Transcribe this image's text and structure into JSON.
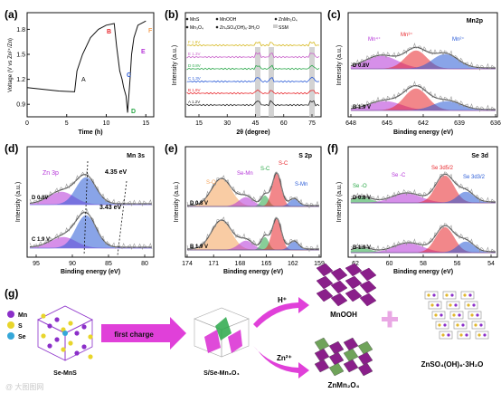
{
  "panels": {
    "a": {
      "label": "(a)",
      "ylabel": "Voltage (V vs Zn²⁺/Zn)",
      "xlabel": "Time (h)",
      "xticks": [
        "0",
        "5",
        "10",
        "15"
      ],
      "yticks": [
        "0.9",
        "1.2",
        "1.5",
        "1.8"
      ],
      "points": [
        "A",
        "B",
        "C",
        "D",
        "E",
        "F"
      ]
    },
    "b": {
      "label": "(b)",
      "ylabel": "Intensity (a.u.)",
      "xlabel": "2θ (degree)",
      "xticks": [
        "15",
        "30",
        "45",
        "60",
        "75"
      ],
      "legend": [
        "MnS",
        "Mn₃O₄",
        "MnOOH",
        "Zn₄SO₄(OH)₆·3H₂O",
        "ZnMn₂O₄",
        "SSM"
      ],
      "traces": [
        "F 1.9V",
        "E 1.3V",
        "D 0.8V",
        "C 1.3V",
        "B 1.9V",
        "A 1.2V"
      ]
    },
    "c": {
      "label": "(c)",
      "title": "Mn2p",
      "ylabel": "Intensity (a.u.)",
      "xlabel": "Binding energy (eV)",
      "xticks": [
        "648",
        "645",
        "642",
        "639",
        "636"
      ],
      "peaks": [
        "Mn⁴⁺",
        "Mn³⁺",
        "Mn²⁺"
      ],
      "traces": [
        "D 0.8V",
        "B 1.9 V"
      ]
    },
    "d": {
      "label": "(d)",
      "title": "Mn 3s",
      "ylabel": "Intensity (a.u.)",
      "xlabel": "Binding energy (eV)",
      "xticks": [
        "95",
        "90",
        "85",
        "80"
      ],
      "peak": "Zn 3p",
      "splits": [
        "4.35 eV",
        "3.43 eV"
      ],
      "traces": [
        "D 0.8V",
        "C 1.9 V"
      ]
    },
    "e": {
      "label": "(e)",
      "title": "S 2p",
      "ylabel": "Intensity (a.u.)",
      "xlabel": "Binding energy (eV)",
      "xticks": [
        "174",
        "171",
        "168",
        "165",
        "162",
        "159"
      ],
      "peaks": [
        "S-O",
        "Se-Mn",
        "S-C",
        "S-C",
        "S-Mn"
      ],
      "traces": [
        "D 0.8 V",
        "B 1.9 V"
      ]
    },
    "f": {
      "label": "(f)",
      "title": "Se 3d",
      "ylabel": "Intensity (a.u.)",
      "xlabel": "Binding energy (eV)",
      "xticks": [
        "62",
        "60",
        "58",
        "56",
        "54"
      ],
      "peaks": [
        "Se -O",
        "Se -C",
        "Se 3d5/2",
        "Se 3d3/2"
      ],
      "traces": [
        "D 0.8 V",
        "B 1.9 V"
      ]
    },
    "g": {
      "label": "(g)",
      "legend": [
        "Mn",
        "S",
        "Se"
      ],
      "arrow1": "first charge",
      "arrow_up": "H⁺",
      "arrow_down": "Zn²⁺",
      "names": [
        "Se-MnS",
        "S/Se-Mn₃O₄",
        "MnOOH",
        "ZnMn₂O₄",
        "ZnSO₄(OH)₆·3H₂O"
      ]
    }
  },
  "watermark": "@ 大图图网",
  "colors": {
    "red": "#e8262b",
    "blue": "#2a5bd7",
    "purple": "#b535d8",
    "green": "#28a745",
    "orange": "#f5a45a",
    "magenta": "#d71dd0",
    "gray": "#9a9a9a"
  },
  "chart_data": [
    {
      "type": "line",
      "panel": "a",
      "xlabel": "Time (h)",
      "ylabel": "Voltage (V vs Zn²⁺/Zn)",
      "xlim": [
        0,
        16
      ],
      "ylim": [
        0.75,
        2.0
      ],
      "series": [
        {
          "x": [
            0,
            2,
            4,
            6,
            6.3,
            7,
            8,
            9,
            10,
            11,
            11.3,
            11.7,
            12,
            12.2,
            12.5,
            12.7,
            13,
            13.2,
            13.5,
            14,
            15
          ],
          "y": [
            1.1,
            1.08,
            1.06,
            1.05,
            1.3,
            1.5,
            1.7,
            1.8,
            1.85,
            1.87,
            1.6,
            1.3,
            1.2,
            1.1,
            1.0,
            0.8,
            1.2,
            1.5,
            1.7,
            1.85,
            1.9
          ]
        }
      ]
    },
    {
      "type": "line",
      "panel": "b",
      "xlabel": "2θ (degree)",
      "ylabel": "Intensity (a.u.)",
      "xlim": [
        5,
        80
      ],
      "categories": [
        "F 1.9V",
        "E 1.3V",
        "D 0.8V",
        "C 1.3V",
        "B 1.9V",
        "A 1.2V"
      ],
      "shaded_2theta": [
        43.5,
        50.5,
        74.5
      ]
    },
    {
      "type": "line",
      "panel": "c",
      "xlabel": "Binding energy (eV)",
      "xlim": [
        648,
        636
      ]
    },
    {
      "type": "line",
      "panel": "d",
      "xlabel": "Binding energy (eV)",
      "xlim": [
        97,
        80
      ]
    },
    {
      "type": "line",
      "panel": "e",
      "xlabel": "Binding energy (eV)",
      "xlim": [
        174,
        159
      ]
    },
    {
      "type": "line",
      "panel": "f",
      "xlabel": "Binding energy (eV)",
      "xlim": [
        63,
        53
      ]
    }
  ]
}
